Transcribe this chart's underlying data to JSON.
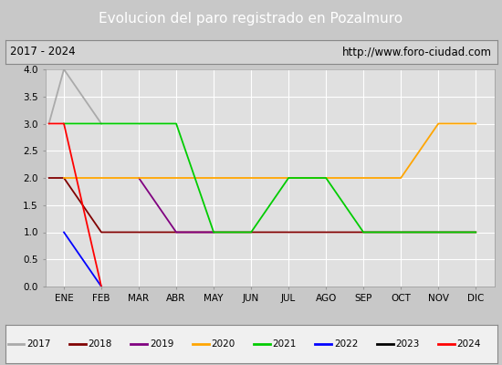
{
  "title": "Evolucion del paro registrado en Pozalmuro",
  "subtitle_left": "2017 - 2024",
  "subtitle_right": "http://www.foro-ciudad.com",
  "xlabel_ticks": [
    "ENE",
    "FEB",
    "MAR",
    "ABR",
    "MAY",
    "JUN",
    "JUL",
    "AGO",
    "SEP",
    "OCT",
    "NOV",
    "DIC"
  ],
  "ylim": [
    0.0,
    4.0
  ],
  "yticks": [
    0.0,
    0.5,
    1.0,
    1.5,
    2.0,
    2.5,
    3.0,
    3.5,
    4.0
  ],
  "series": {
    "2017": {
      "color": "#aaaaaa",
      "x": [
        -0.4,
        0,
        1,
        2
      ],
      "y": [
        3,
        4,
        3,
        null
      ]
    },
    "2018": {
      "color": "#800000",
      "x": [
        -0.4,
        0,
        1,
        2,
        3,
        4,
        5,
        6,
        7,
        8,
        9,
        10,
        11
      ],
      "y": [
        2,
        2,
        1,
        1,
        1,
        1,
        1,
        1,
        1,
        1,
        1,
        1,
        1
      ]
    },
    "2019": {
      "color": "#800080",
      "x": [
        2,
        3,
        4
      ],
      "y": [
        2,
        1,
        1
      ]
    },
    "2020": {
      "color": "#ffa500",
      "x": [
        0,
        1,
        2,
        3,
        4,
        5,
        6,
        7,
        8,
        9,
        10,
        11
      ],
      "y": [
        2,
        2,
        2,
        2,
        2,
        2,
        2,
        2,
        2,
        2,
        3,
        3
      ]
    },
    "2021": {
      "color": "#00cc00",
      "x": [
        0,
        1,
        2,
        3,
        4,
        5,
        6,
        7,
        8,
        9,
        10,
        11
      ],
      "y": [
        3,
        3,
        3,
        3,
        1,
        1,
        2,
        2,
        1,
        1,
        1,
        1
      ]
    },
    "2022": {
      "color": "#0000ff",
      "x": [
        0,
        1
      ],
      "y": [
        1,
        0
      ]
    },
    "2023": {
      "color": "#000000",
      "x": [],
      "y": []
    },
    "2024": {
      "color": "#ff0000",
      "x": [
        -0.4,
        0,
        1
      ],
      "y": [
        3,
        3,
        0
      ]
    }
  },
  "legend_order": [
    "2017",
    "2018",
    "2019",
    "2020",
    "2021",
    "2022",
    "2023",
    "2024"
  ],
  "fig_bg_color": "#c8c8c8",
  "plot_bg_color": "#e0e0e0",
  "title_bg_color": "#4472c4",
  "subtitle_bg_color": "#d4d4d4",
  "grid_color": "#ffffff",
  "legend_bg_color": "#f0f0f0"
}
